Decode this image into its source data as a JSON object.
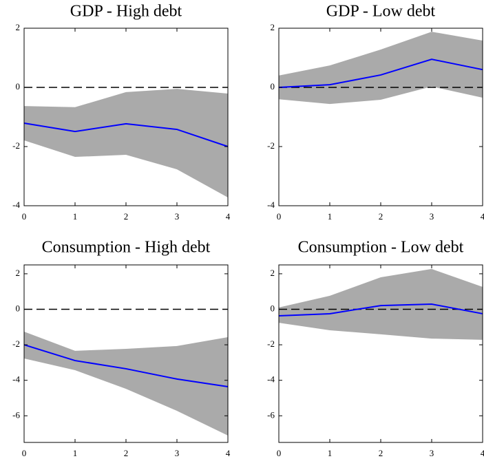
{
  "chart_data": [
    {
      "type": "line",
      "title": "GDP - High debt",
      "x": [
        0,
        1,
        2,
        3,
        4
      ],
      "values": [
        -1.21,
        -1.49,
        -1.23,
        -1.42,
        -2.0
      ],
      "upper": [
        -0.63,
        -0.67,
        -0.16,
        -0.05,
        -0.21
      ],
      "lower": [
        -1.79,
        -2.35,
        -2.28,
        -2.77,
        -3.72
      ],
      "color": "#0000ff",
      "band_color": "#aaaaaa",
      "reference_line": 0,
      "xlim": [
        0,
        4
      ],
      "xticks": [
        0,
        1,
        2,
        3,
        4
      ],
      "ylim": [
        -4,
        2
      ],
      "yticks": [
        -4,
        -2,
        0,
        2
      ]
    },
    {
      "type": "line",
      "title": "GDP - Low debt",
      "x": [
        0,
        1,
        2,
        3,
        4
      ],
      "values": [
        0,
        0.09,
        0.42,
        0.95,
        0.6
      ],
      "upper": [
        0.4,
        0.74,
        1.28,
        1.88,
        1.58
      ],
      "lower": [
        -0.4,
        -0.56,
        -0.42,
        0.03,
        -0.35
      ],
      "color": "#0000ff",
      "band_color": "#aaaaaa",
      "reference_line": 0,
      "xlim": [
        0,
        4
      ],
      "xticks": [
        0,
        1,
        2,
        3,
        4
      ],
      "ylim": [
        -4,
        2
      ],
      "yticks": [
        -4,
        -2,
        0,
        2
      ]
    },
    {
      "type": "line",
      "title": "Consumption - High debt",
      "x": [
        0,
        1,
        2,
        3,
        4
      ],
      "values": [
        -2.0,
        -2.89,
        -3.35,
        -3.93,
        -4.36
      ],
      "upper": [
        -1.26,
        -2.34,
        -2.23,
        -2.07,
        -1.57
      ],
      "lower": [
        -2.77,
        -3.43,
        -4.48,
        -5.72,
        -7.11
      ],
      "color": "#0000ff",
      "band_color": "#aaaaaa",
      "reference_line": 0,
      "xlim": [
        0,
        4
      ],
      "xticks": [
        0,
        1,
        2,
        3,
        4
      ],
      "ylim": [
        -7.5,
        2.5
      ],
      "yticks": [
        -6,
        -4,
        -2,
        0,
        2
      ]
    },
    {
      "type": "line",
      "title": "Consumption - Low debt",
      "x": [
        0,
        1,
        2,
        3,
        4
      ],
      "values": [
        -0.37,
        -0.25,
        0.21,
        0.29,
        -0.25
      ],
      "upper": [
        0.1,
        0.76,
        1.8,
        2.27,
        1.26
      ],
      "lower": [
        -0.76,
        -1.18,
        -1.41,
        -1.65,
        -1.72
      ],
      "color": "#0000ff",
      "band_color": "#aaaaaa",
      "reference_line": 0,
      "xlim": [
        0,
        4
      ],
      "xticks": [
        0,
        1,
        2,
        3,
        4
      ],
      "ylim": [
        -7.5,
        2.5
      ],
      "yticks": [
        -6,
        -4,
        -2,
        0,
        2
      ]
    }
  ]
}
